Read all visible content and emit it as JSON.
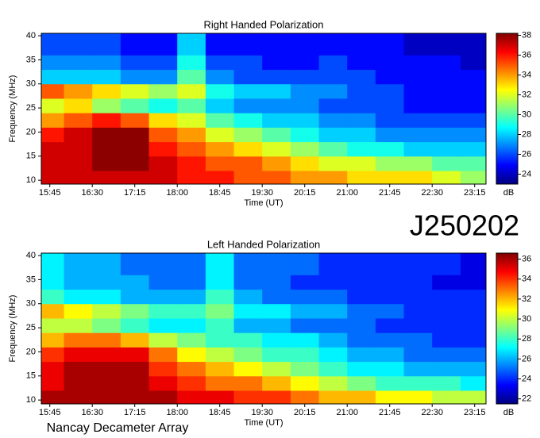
{
  "label": "J250202",
  "footer": "Nancay Decameter Array",
  "chart_data": [
    {
      "type": "heatmap",
      "title": "Right Handed Polarization",
      "xlabel": "Time (UT)",
      "ylabel": "Frequency (MHz)",
      "colorbar_label": "dB",
      "xlim": [
        936,
        1407
      ],
      "xticks": [
        {
          "value": 945,
          "label": "15:45"
        },
        {
          "value": 990,
          "label": "16:30"
        },
        {
          "value": 1035,
          "label": "17:15"
        },
        {
          "value": 1080,
          "label": "18:00"
        },
        {
          "value": 1125,
          "label": "18:45"
        },
        {
          "value": 1170,
          "label": "19:30"
        },
        {
          "value": 1215,
          "label": "20:15"
        },
        {
          "value": 1260,
          "label": "21:00"
        },
        {
          "value": 1305,
          "label": "21:45"
        },
        {
          "value": 1350,
          "label": "22:30"
        },
        {
          "value": 1395,
          "label": "23:15"
        }
      ],
      "ylim": [
        9.2,
        40.5
      ],
      "yticks": [
        10,
        15,
        20,
        25,
        30,
        35,
        40
      ],
      "x_edges": [
        936,
        960,
        990,
        1020,
        1050,
        1080,
        1110,
        1140,
        1170,
        1200,
        1230,
        1260,
        1290,
        1320,
        1350,
        1380,
        1407
      ],
      "y_edges": [
        9.2,
        12,
        15,
        18,
        21,
        24,
        27,
        30,
        33,
        36,
        40.5
      ],
      "z": [
        [
          37,
          37,
          37,
          37,
          37,
          36,
          36,
          35,
          35,
          34,
          34,
          33,
          33,
          33,
          32,
          31
        ],
        [
          37,
          37,
          38,
          38,
          37,
          36,
          35,
          35,
          34,
          33,
          32,
          32,
          31,
          31,
          30,
          30
        ],
        [
          37,
          37,
          38,
          38,
          36,
          35,
          34,
          33,
          32,
          31,
          30,
          29,
          29,
          28,
          28,
          28
        ],
        [
          36,
          37,
          38,
          38,
          35,
          34,
          32,
          31,
          30,
          29,
          28,
          28,
          27,
          27,
          27,
          27
        ],
        [
          34,
          35,
          36,
          35,
          33,
          32,
          30,
          29,
          28,
          28,
          27,
          27,
          26,
          26,
          26,
          26
        ],
        [
          32,
          33,
          31,
          30,
          29,
          30,
          28,
          27,
          27,
          27,
          26,
          26,
          26,
          25,
          25,
          25
        ],
        [
          35,
          34,
          33,
          32,
          31,
          32,
          29,
          28,
          28,
          27,
          27,
          26,
          26,
          25,
          25,
          25
        ],
        [
          28,
          28,
          28,
          27,
          27,
          30,
          27,
          26,
          26,
          26,
          26,
          26,
          25,
          25,
          25,
          25
        ],
        [
          27,
          27,
          27,
          26,
          26,
          29,
          26,
          26,
          25,
          25,
          26,
          25,
          25,
          25,
          25,
          24
        ],
        [
          26,
          26,
          26,
          25,
          25,
          28,
          25,
          25,
          25,
          25,
          25,
          25,
          25,
          24,
          24,
          24
        ]
      ],
      "zlim": [
        23,
        38.2
      ],
      "zticks": [
        24,
        26,
        28,
        30,
        32,
        34,
        36,
        38
      ],
      "colormap": [
        "#00007f",
        "#0000ff",
        "#0080ff",
        "#00ffff",
        "#80ff80",
        "#ffff00",
        "#ff8000",
        "#ff0000",
        "#7f0000"
      ]
    },
    {
      "type": "heatmap",
      "title": "Left Handed Polarization",
      "xlabel": "Time (UT)",
      "ylabel": "Frequency (MHz)",
      "colorbar_label": "dB",
      "xlim": [
        936,
        1407
      ],
      "xticks": [
        {
          "value": 945,
          "label": "15:45"
        },
        {
          "value": 990,
          "label": "16:30"
        },
        {
          "value": 1035,
          "label": "17:15"
        },
        {
          "value": 1080,
          "label": "18:00"
        },
        {
          "value": 1125,
          "label": "18:45"
        },
        {
          "value": 1170,
          "label": "19:30"
        },
        {
          "value": 1215,
          "label": "20:15"
        },
        {
          "value": 1260,
          "label": "21:00"
        },
        {
          "value": 1305,
          "label": "21:45"
        },
        {
          "value": 1350,
          "label": "22:30"
        },
        {
          "value": 1395,
          "label": "23:15"
        }
      ],
      "ylim": [
        9.2,
        40.5
      ],
      "yticks": [
        10,
        15,
        20,
        25,
        30,
        35,
        40
      ],
      "x_edges": [
        936,
        960,
        990,
        1020,
        1050,
        1080,
        1110,
        1140,
        1170,
        1200,
        1230,
        1260,
        1290,
        1320,
        1350,
        1380,
        1407
      ],
      "y_edges": [
        9.2,
        12,
        15,
        18,
        21,
        24,
        27,
        30,
        33,
        36,
        40.5
      ],
      "z": [
        [
          36,
          36,
          36,
          36,
          36,
          35,
          35,
          34,
          34,
          33,
          32,
          32,
          31,
          31,
          30,
          30
        ],
        [
          35,
          36,
          36,
          36,
          35,
          34,
          33,
          33,
          32,
          31,
          30,
          29,
          28,
          28,
          28,
          27
        ],
        [
          35,
          36,
          36,
          36,
          34,
          33,
          32,
          31,
          30,
          29,
          28,
          27,
          27,
          26,
          26,
          26
        ],
        [
          34,
          35,
          35,
          35,
          33,
          31,
          30,
          29,
          28,
          28,
          27,
          26,
          26,
          25,
          25,
          25
        ],
        [
          32,
          33,
          33,
          32,
          30,
          29,
          28,
          28,
          27,
          27,
          26,
          25,
          25,
          25,
          24,
          24
        ],
        [
          30,
          30,
          29,
          28,
          27,
          27,
          28,
          26,
          26,
          25,
          25,
          25,
          24,
          24,
          24,
          24
        ],
        [
          32,
          31,
          30,
          29,
          28,
          28,
          29,
          27,
          27,
          26,
          26,
          25,
          25,
          24,
          24,
          24
        ],
        [
          28,
          27,
          27,
          26,
          26,
          26,
          28,
          26,
          25,
          25,
          25,
          24,
          24,
          24,
          24,
          24
        ],
        [
          27,
          26,
          26,
          26,
          25,
          25,
          27,
          25,
          25,
          24,
          24,
          24,
          24,
          24,
          23,
          23
        ],
        [
          27,
          26,
          26,
          25,
          25,
          25,
          27,
          25,
          25,
          25,
          24,
          24,
          24,
          24,
          24,
          23
        ]
      ],
      "zlim": [
        21.5,
        36.6
      ],
      "zticks": [
        22,
        24,
        26,
        28,
        30,
        32,
        34,
        36
      ],
      "colormap": [
        "#00007f",
        "#0000ff",
        "#0080ff",
        "#00ffff",
        "#80ff80",
        "#ffff00",
        "#ff8000",
        "#ff0000",
        "#7f0000"
      ]
    }
  ]
}
